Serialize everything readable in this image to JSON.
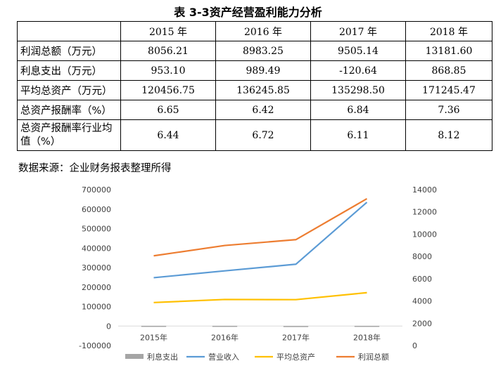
{
  "title": "表 3-3资产经营盈利能力分析",
  "table": {
    "columns": [
      "",
      "2015 年",
      "2016 年",
      "2017 年",
      "2018 年"
    ],
    "rows": [
      {
        "label": "利润总额（万元）",
        "values": [
          "8056.21",
          "8983.25",
          "9505.14",
          "13181.60"
        ]
      },
      {
        "label": "利息支出（万元）",
        "values": [
          "953.10",
          "989.49",
          "-120.64",
          "868.85"
        ]
      },
      {
        "label": "平均总资产（万元）",
        "values": [
          "120456.75",
          "136245.85",
          "135298.50",
          "171245.47"
        ]
      },
      {
        "label": "总资产报酬率（%）",
        "values": [
          "6.65",
          "6.42",
          "6.84",
          "7.36"
        ]
      },
      {
        "label": "总资产报酬率行业均值（%）",
        "values": [
          "6.44",
          "6.72",
          "6.11",
          "8.12"
        ]
      }
    ]
  },
  "source_note": "数据来源：企业财务报表整理所得",
  "chart_data": {
    "type": "line",
    "categories": [
      "2015年",
      "2016年",
      "2017年",
      "2018年"
    ],
    "y_left": {
      "ticks": [
        -100000,
        0,
        100000,
        200000,
        300000,
        400000,
        500000,
        600000,
        700000
      ],
      "min": -100000,
      "max": 700000
    },
    "y_right": {
      "ticks": [
        0,
        2000,
        4000,
        6000,
        8000,
        10000,
        12000,
        14000
      ],
      "min": 0,
      "max": 14000
    },
    "grid": false,
    "legend_position": "bottom",
    "series": [
      {
        "name": "利息支出",
        "type": "bar",
        "axis": "left",
        "color": "#A5A5A5",
        "values": [
          953.1,
          989.49,
          -120.64,
          868.85
        ]
      },
      {
        "name": "营业收入",
        "type": "line",
        "axis": "left",
        "color": "#5B9BD5",
        "values": [
          248000,
          283000,
          317000,
          635000
        ]
      },
      {
        "name": "平均总资产",
        "type": "line",
        "axis": "left",
        "color": "#FFC000",
        "values": [
          120456.75,
          136245.85,
          135298.5,
          171245.47
        ]
      },
      {
        "name": "利润总额",
        "type": "line",
        "axis": "right",
        "color": "#ED7D31",
        "values": [
          8056.21,
          8983.25,
          9505.14,
          13181.6
        ]
      }
    ]
  }
}
